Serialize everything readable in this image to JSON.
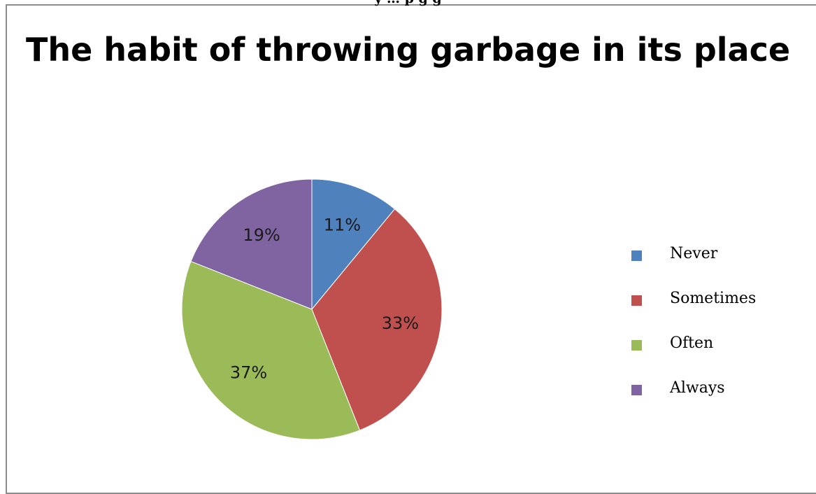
{
  "caption_fragment": "y … p g g",
  "chart_data": {
    "type": "pie",
    "title": "The habit of throwing garbage in its place",
    "categories": [
      "Never",
      "Sometimes",
      "Often",
      "Always"
    ],
    "values": [
      11,
      33,
      37,
      19
    ],
    "labels": [
      "11%",
      "33%",
      "37%",
      "19%"
    ],
    "colors": [
      "#4F81BD",
      "#C0504D",
      "#9BBB59",
      "#8064A2"
    ],
    "legend_position": "right"
  }
}
